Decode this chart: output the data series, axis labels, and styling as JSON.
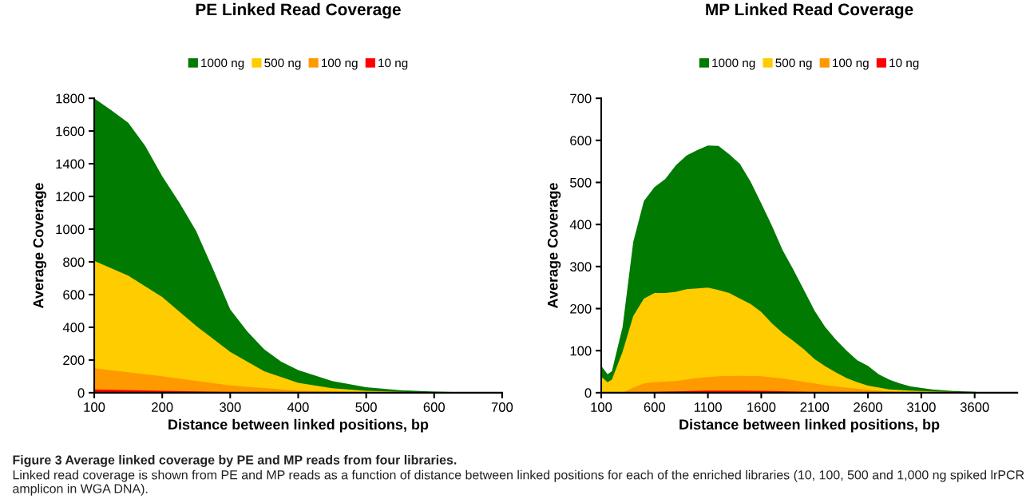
{
  "chart_data": [
    {
      "type": "area",
      "title": "PE Linked Read Coverage",
      "xlabel": "Distance between linked positions, bp",
      "ylabel": "Average Coverage",
      "xlim": [
        100,
        700
      ],
      "xticks": [
        100,
        200,
        300,
        400,
        500,
        600,
        700
      ],
      "ylim": [
        0,
        1800
      ],
      "yticks": [
        0,
        200,
        400,
        600,
        800,
        1000,
        1200,
        1400,
        1600,
        1800
      ],
      "grid": false,
      "legend": "top",
      "series": [
        {
          "name": "1000 ng",
          "color": "#007a00",
          "x": [
            100,
            125,
            150,
            175,
            200,
            225,
            250,
            275,
            300,
            325,
            350,
            375,
            400,
            450,
            500,
            550,
            600,
            650,
            700
          ],
          "values": [
            1800,
            1727,
            1651,
            1509,
            1324,
            1164,
            988,
            753,
            509,
            375,
            265,
            190,
            139,
            72,
            34,
            15,
            7,
            2,
            0
          ]
        },
        {
          "name": "500 ng",
          "color": "#ffcc00",
          "x": [
            100,
            125,
            150,
            200,
            250,
            300,
            350,
            400,
            450,
            500,
            550,
            600,
            650
          ],
          "values": [
            806,
            761,
            716,
            585,
            408,
            249,
            131,
            60,
            27,
            12,
            5,
            2,
            0
          ]
        },
        {
          "name": "100 ng",
          "color": "#ff9900",
          "x": [
            100,
            200,
            300,
            400,
            500,
            600
          ],
          "values": [
            150,
            101,
            44,
            13,
            3,
            0
          ]
        },
        {
          "name": "10 ng",
          "color": "#ff0000",
          "x": [
            100,
            200,
            300,
            400,
            500
          ],
          "values": [
            20,
            12,
            4,
            1,
            0
          ]
        }
      ]
    },
    {
      "type": "area",
      "title": "MP Linked Read Coverage",
      "xlabel": "Distance between linked positions, bp",
      "ylabel": "Average Coverage",
      "xlim": [
        100,
        4000
      ],
      "xticks": [
        100,
        600,
        1100,
        1600,
        2100,
        2600,
        3100,
        3600
      ],
      "ylim": [
        0,
        700
      ],
      "yticks": [
        0,
        100,
        200,
        300,
        400,
        500,
        600,
        700
      ],
      "grid": false,
      "legend": "top",
      "annotations": [
        "Figure 3 Average linked coverage by PE and MP reads from four libraries.",
        "Linked read coverage is shown from PE and MP reads as a function of distance between linked positions for each of the enriched libraries (10, 100, 500 and 1,000 ng spiked lrPCR amplicon in WGA DNA)."
      ],
      "series": [
        {
          "name": "1000 ng",
          "color": "#007a00",
          "x": [
            100,
            160,
            200,
            300,
            400,
            500,
            600,
            700,
            800,
            900,
            1000,
            1100,
            1200,
            1300,
            1400,
            1500,
            1600,
            1700,
            1800,
            1900,
            2000,
            2100,
            2200,
            2300,
            2400,
            2500,
            2600,
            2700,
            2800,
            2900,
            3000,
            3200,
            3400,
            3600,
            3700
          ],
          "values": [
            64,
            44,
            51,
            156,
            358,
            456,
            489,
            508,
            541,
            564,
            577,
            588,
            587,
            567,
            544,
            502,
            450,
            397,
            339,
            293,
            244,
            195,
            156,
            126,
            100,
            77,
            64,
            44,
            31,
            22,
            15,
            8,
            4,
            2,
            0
          ]
        },
        {
          "name": "500 ng",
          "color": "#ffcc00",
          "x": [
            100,
            160,
            200,
            300,
            400,
            500,
            600,
            700,
            800,
            900,
            1000,
            1100,
            1200,
            1300,
            1400,
            1500,
            1600,
            1700,
            1800,
            1900,
            2000,
            2100,
            2200,
            2300,
            2400,
            2500,
            2600,
            2800,
            3000,
            3200,
            3500,
            3600
          ],
          "values": [
            38,
            25,
            31,
            97,
            182,
            224,
            237,
            237,
            240,
            246,
            248,
            250,
            244,
            237,
            224,
            211,
            192,
            165,
            142,
            123,
            103,
            80,
            63,
            48,
            35,
            25,
            17,
            8,
            5,
            3,
            1,
            0
          ]
        },
        {
          "name": "100 ng",
          "color": "#ff9900",
          "x": [
            100,
            300,
            400,
            500,
            600,
            800,
            1000,
            1200,
            1400,
            1600,
            1800,
            2000,
            2200,
            2400,
            2600,
            2800,
            3000,
            3200
          ],
          "values": [
            0,
            0,
            12,
            22,
            25,
            28,
            35,
            39,
            40,
            39,
            34,
            26,
            18,
            12,
            7,
            3,
            1,
            0
          ]
        },
        {
          "name": "10 ng",
          "color": "#ff0000",
          "x": [
            100,
            500,
            800,
            1100,
            1400,
            1700,
            2000,
            2300,
            2600
          ],
          "values": [
            0,
            1,
            3,
            5,
            5,
            4,
            2,
            1,
            0
          ]
        }
      ]
    }
  ]
}
